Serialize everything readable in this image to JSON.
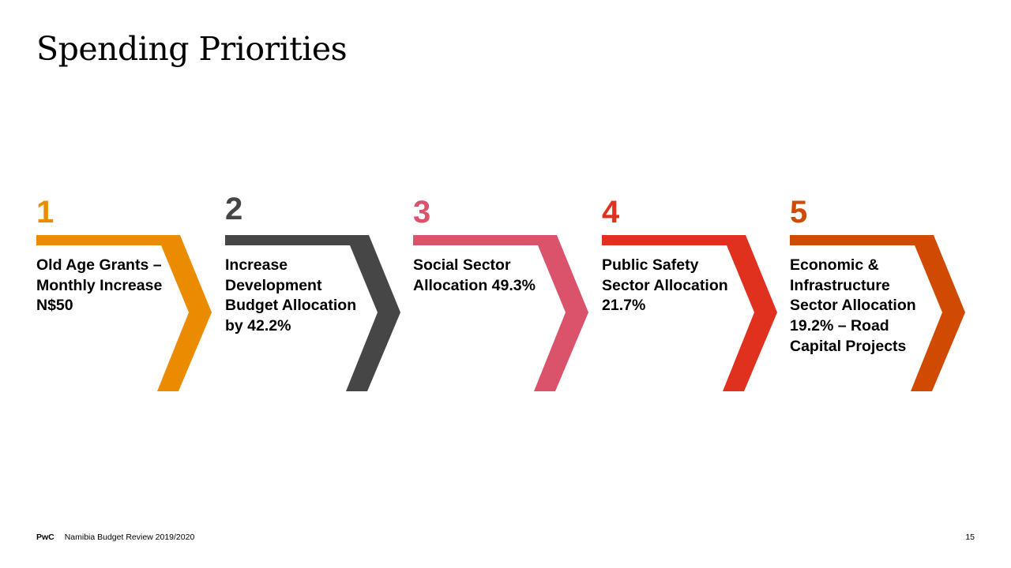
{
  "title": "Spending Priorities",
  "steps": [
    {
      "number": "1",
      "text": "Old Age Grants – Monthly Increase N$50",
      "color": "#EB8C00"
    },
    {
      "number": "2",
      "text": "Increase Development Budget Allocation by 42.2%",
      "color": "#464646"
    },
    {
      "number": "3",
      "text": "Social Sector Allocation 49.3%",
      "color": "#DB536A"
    },
    {
      "number": "4",
      "text": "Public Safety Sector Allocation 21.7%",
      "color": "#E0301E"
    },
    {
      "number": "5",
      "text": "Economic & Infrastructure Sector Allocation 19.2% – Road Capital Projects",
      "color": "#D04A02"
    }
  ],
  "footer": {
    "brand": "PwC",
    "document_title": "Namibia Budget Review 2019/2020",
    "page_number": "15"
  }
}
